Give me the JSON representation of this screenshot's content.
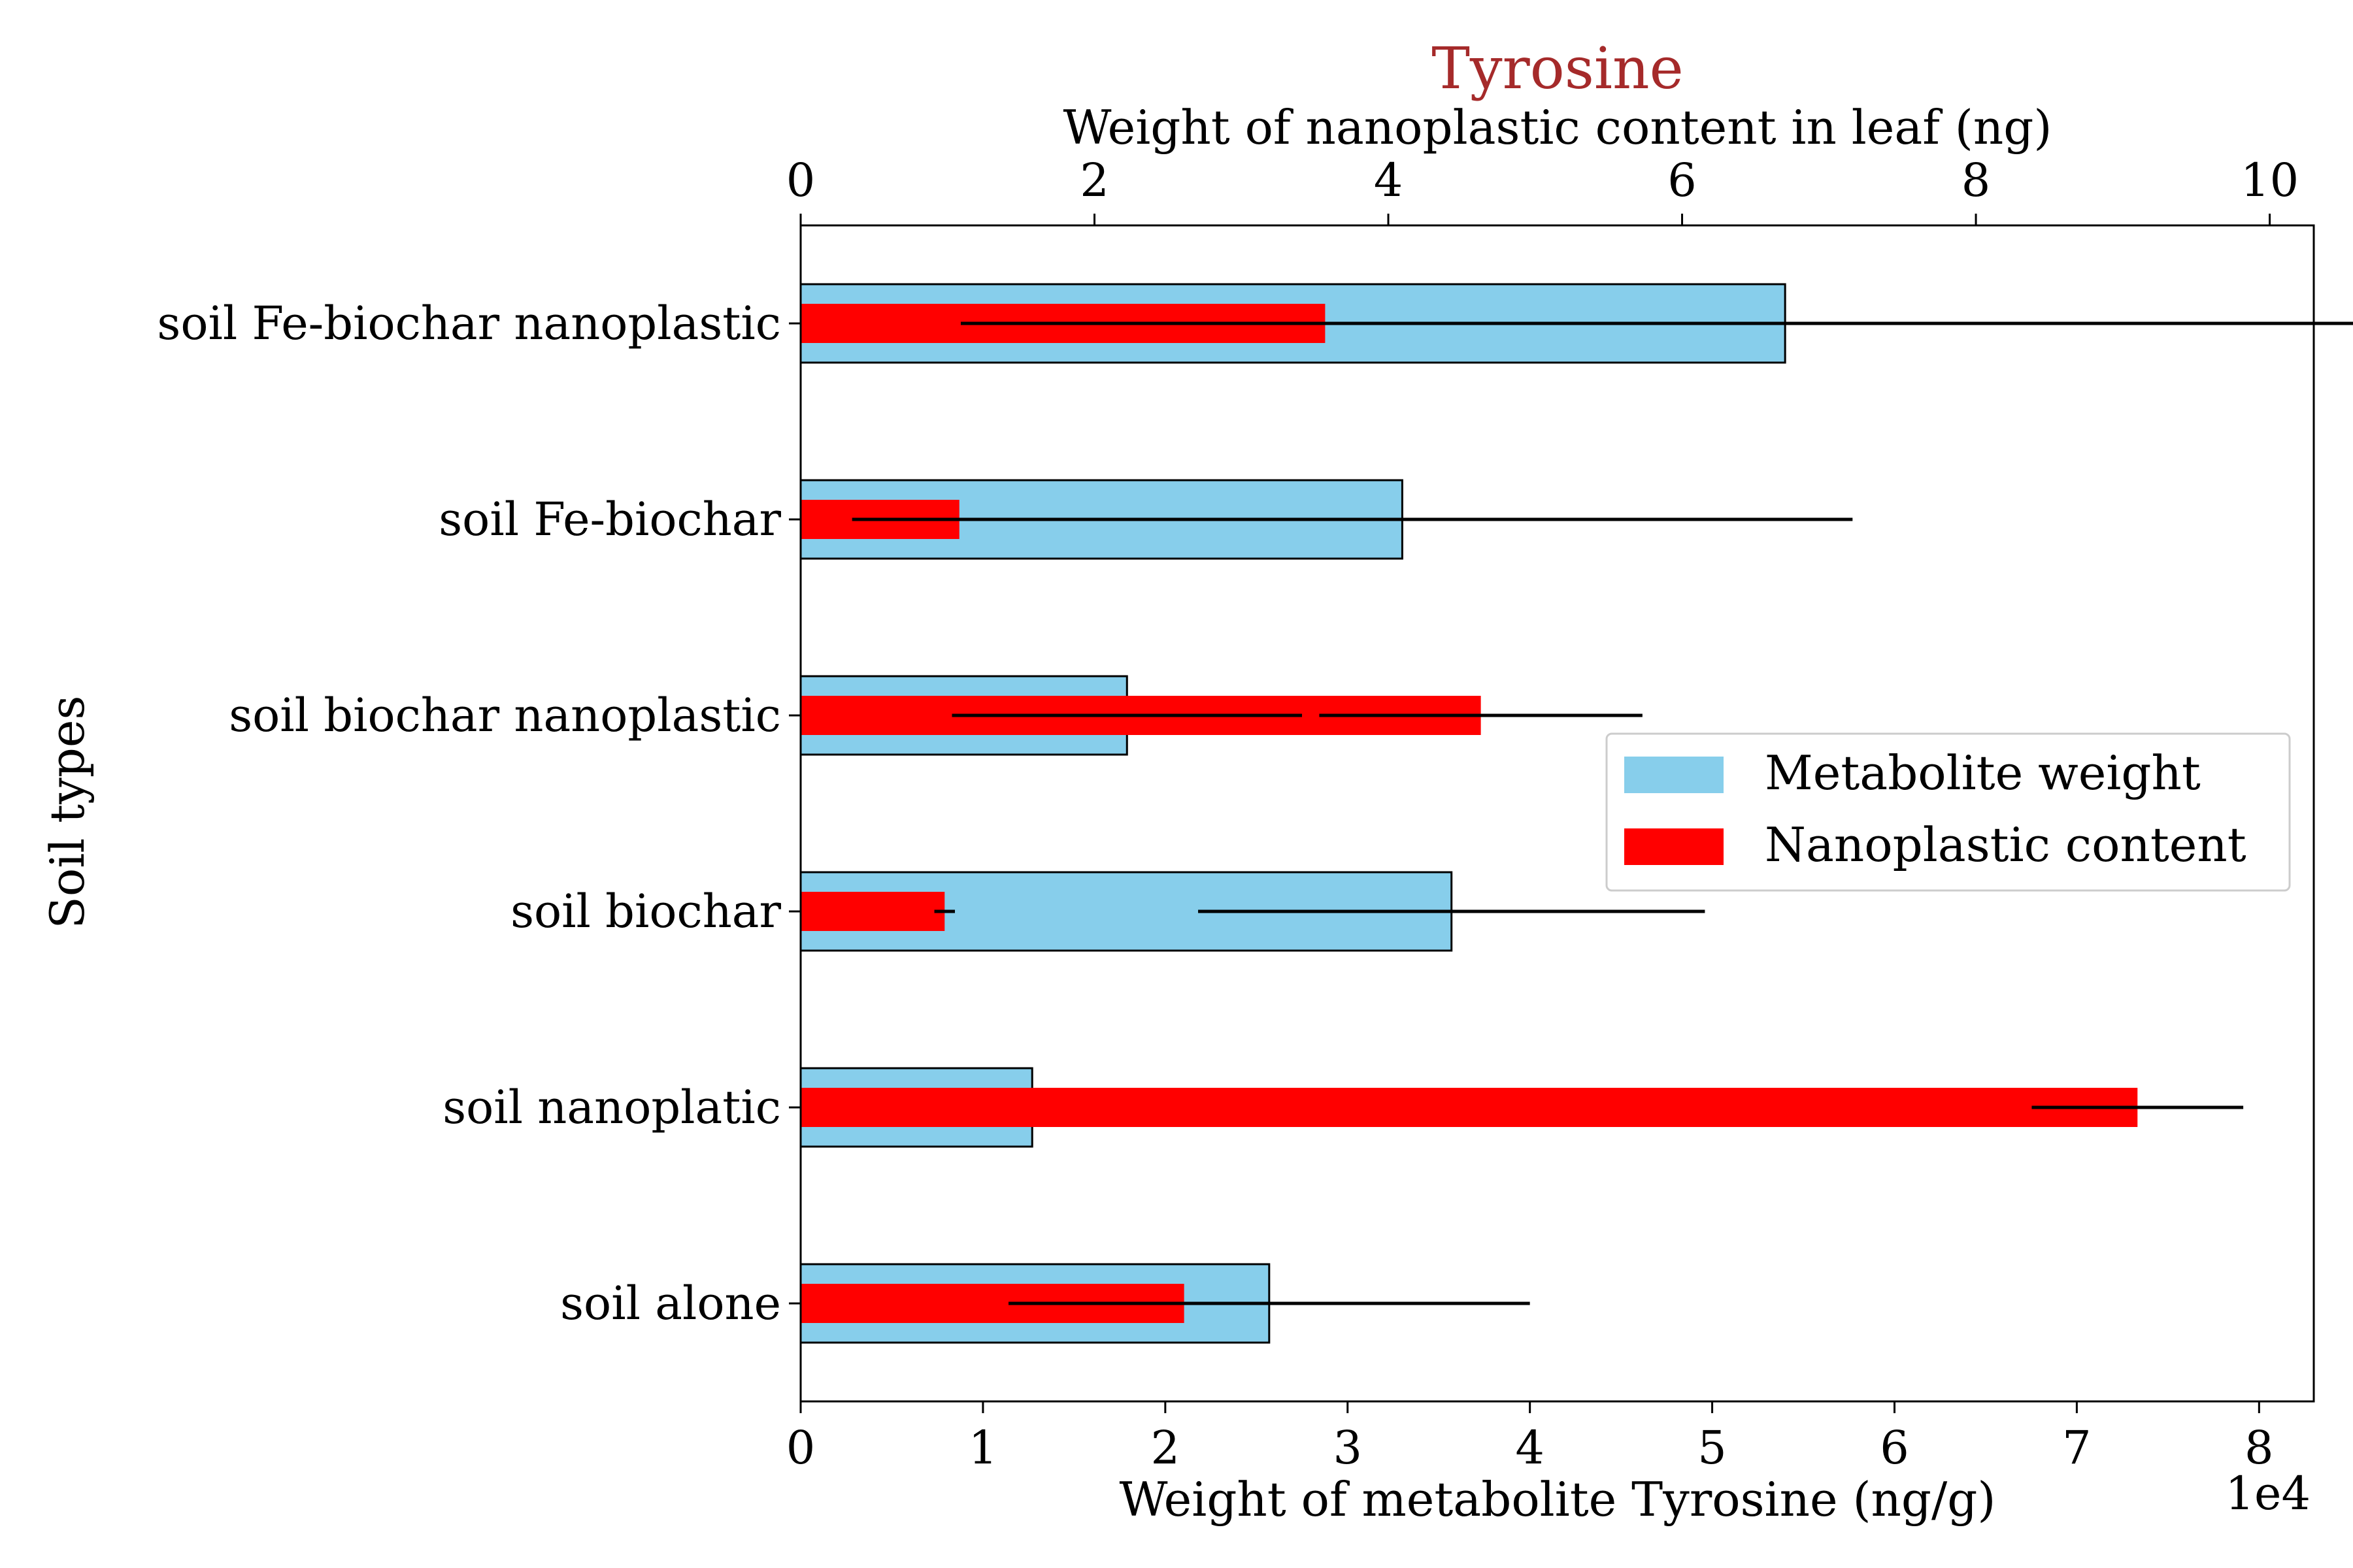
{
  "chart_data": {
    "type": "bar",
    "orientation": "horizontal",
    "title": "Tyrosine",
    "title_color": "#a52a2a",
    "ylabel": "Soil types",
    "categories": [
      "soil Fe-biochar nanoplastic",
      "soil Fe-biochar",
      "soil biochar nanoplastic",
      "soil biochar",
      "soil nanoplatic",
      "soil alone"
    ],
    "bottom_axis": {
      "label": "Weight of metabolite Tyrosine (ng/g)",
      "xlim": [
        0,
        83000
      ],
      "ticks": [
        0,
        10000,
        20000,
        30000,
        40000,
        50000,
        60000,
        70000,
        80000
      ],
      "tick_labels": [
        "0",
        "1",
        "2",
        "3",
        "4",
        "5",
        "6",
        "7",
        "8"
      ],
      "offset_text": "1e4"
    },
    "top_axis": {
      "label": "Weight of nanoplastic content in leaf (ng)",
      "xlim": [
        0,
        10.3
      ],
      "ticks": [
        0,
        2,
        4,
        6,
        8,
        10
      ],
      "tick_labels": [
        "0",
        "2",
        "4",
        "6",
        "8",
        "10"
      ]
    },
    "series": [
      {
        "name": "Metabolite weight",
        "axis": "bottom",
        "color": "#87ceeb",
        "values": [
          54000,
          33000,
          17900,
          35700,
          12700,
          25700
        ],
        "errors": [
          39000,
          24700,
          9600,
          13900,
          0,
          14300
        ]
      },
      {
        "name": "Nanoplastic content",
        "axis": "top",
        "color": "#ff0000",
        "values": [
          3.57,
          1.08,
          4.63,
          0.98,
          9.1,
          2.61
        ],
        "errors": [
          2.48,
          0.73,
          1.1,
          0.07,
          0.72,
          1.0
        ]
      }
    ],
    "legend": {
      "position": "center-right",
      "entries": [
        "Metabolite weight",
        "Nanoplastic content"
      ]
    }
  }
}
